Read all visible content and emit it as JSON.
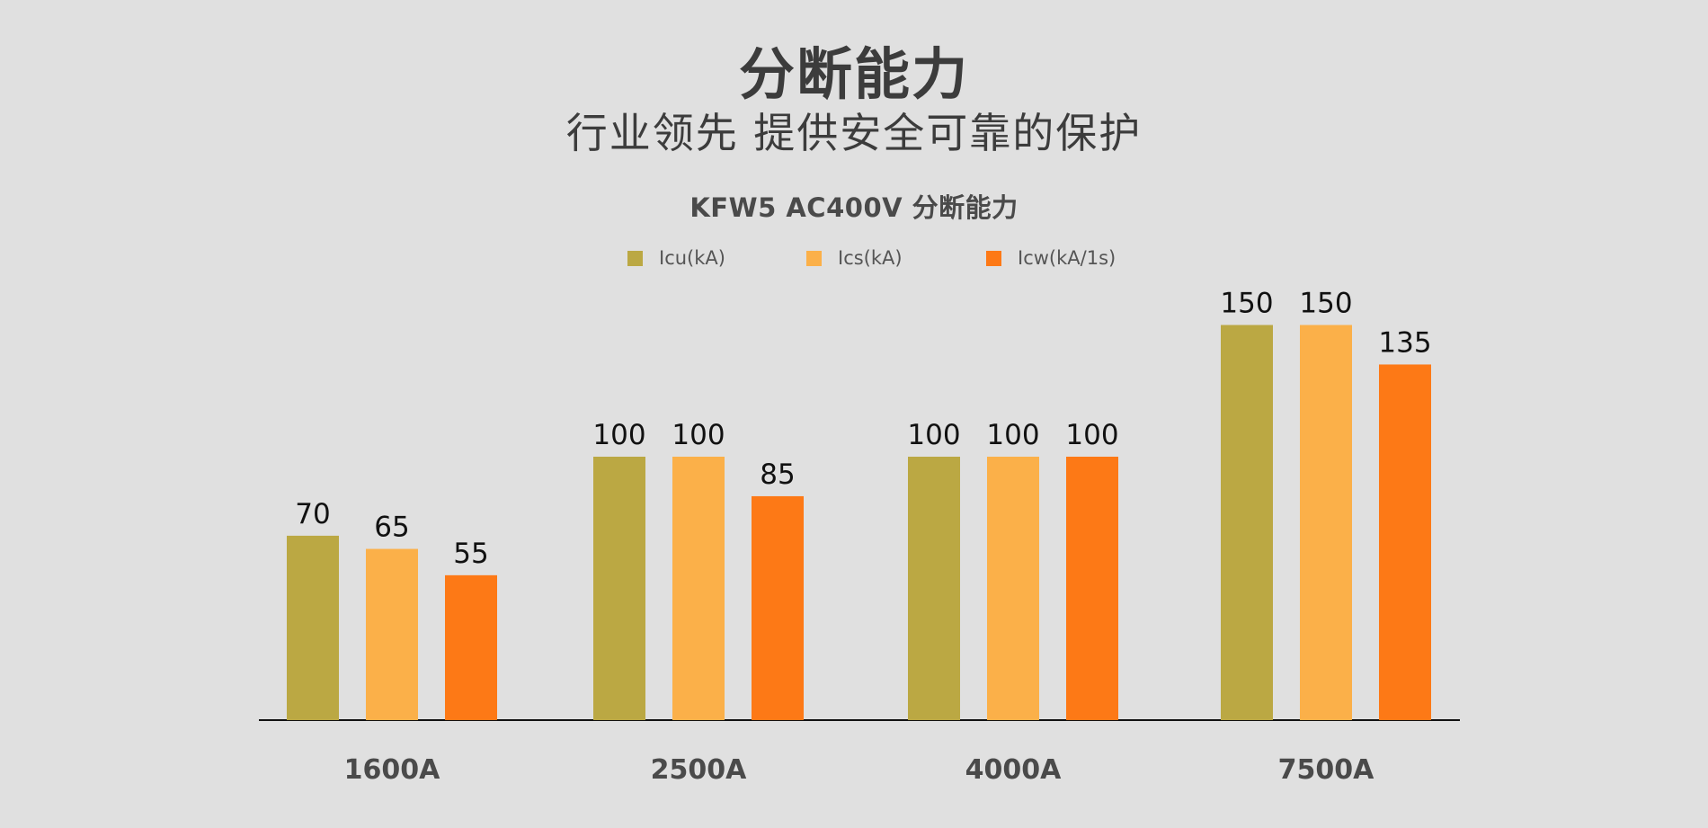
{
  "page": {
    "heading": "分断能力",
    "subheading": "行业领先  提供安全可靠的保护"
  },
  "colors": {
    "background": "#e0e0e0",
    "series": [
      "#bba843",
      "#fbb049",
      "#fd7916"
    ],
    "axis": "#111111",
    "text": "#3c3c3c"
  },
  "chart_data": {
    "type": "bar",
    "title": "KFW5 AC400V 分断能力",
    "xlabel": "",
    "ylabel": "",
    "ylim": [
      0,
      150
    ],
    "grid": false,
    "legend_position": "top-center",
    "categories": [
      "1600A",
      "2500A",
      "4000A",
      "7500A"
    ],
    "series": [
      {
        "name": "Icu(kA)",
        "values": [
          70,
          100,
          100,
          150
        ]
      },
      {
        "name": "Ics(kA)",
        "values": [
          65,
          100,
          100,
          150
        ]
      },
      {
        "name": "Icw(kA/1s)",
        "values": [
          55,
          85,
          100,
          135
        ]
      }
    ]
  }
}
